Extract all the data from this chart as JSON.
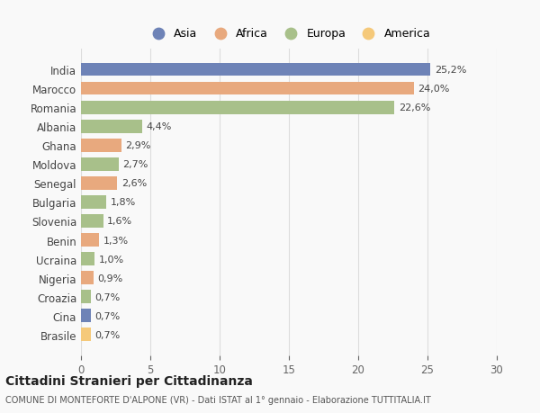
{
  "countries": [
    "India",
    "Marocco",
    "Romania",
    "Albania",
    "Ghana",
    "Moldova",
    "Senegal",
    "Bulgaria",
    "Slovenia",
    "Benin",
    "Ucraina",
    "Nigeria",
    "Croazia",
    "Cina",
    "Brasile"
  ],
  "values": [
    25.2,
    24.0,
    22.6,
    4.4,
    2.9,
    2.7,
    2.6,
    1.8,
    1.6,
    1.3,
    1.0,
    0.9,
    0.7,
    0.7,
    0.7
  ],
  "labels": [
    "25,2%",
    "24,0%",
    "22,6%",
    "4,4%",
    "2,9%",
    "2,7%",
    "2,6%",
    "1,8%",
    "1,6%",
    "1,3%",
    "1,0%",
    "0,9%",
    "0,7%",
    "0,7%",
    "0,7%"
  ],
  "colors": [
    "#6e83b7",
    "#e8a97e",
    "#a8c08a",
    "#a8c08a",
    "#e8a97e",
    "#a8c08a",
    "#e8a97e",
    "#a8c08a",
    "#a8c08a",
    "#e8a97e",
    "#a8c08a",
    "#e8a97e",
    "#a8c08a",
    "#6e83b7",
    "#f5c97a"
  ],
  "legend_labels": [
    "Asia",
    "Africa",
    "Europa",
    "America"
  ],
  "legend_colors": [
    "#6e83b7",
    "#e8a97e",
    "#a8c08a",
    "#f5c97a"
  ],
  "title": "Cittadini Stranieri per Cittadinanza",
  "subtitle": "COMUNE DI MONTEFORTE D'ALPONE (VR) - Dati ISTAT al 1° gennaio - Elaborazione TUTTITALIA.IT",
  "xlim": [
    0,
    30
  ],
  "xticks": [
    0,
    5,
    10,
    15,
    20,
    25,
    30
  ],
  "background_color": "#f9f9f9",
  "grid_color": "#dddddd"
}
